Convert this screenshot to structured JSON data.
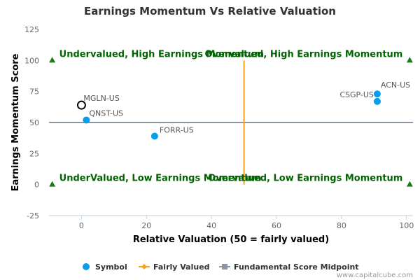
{
  "chart_data": {
    "type": "scatter",
    "title": "Earnings Momentum Vs Relative Valuation",
    "xlabel": "Relative Valuation (50 = fairly valued)",
    "ylabel": "Earnings Momentum Score",
    "xlim": [
      -10,
      102
    ],
    "ylim": [
      -25,
      125
    ],
    "xticks": [
      0,
      20,
      40,
      60,
      80,
      100
    ],
    "yticks": [
      -25,
      0,
      25,
      50,
      75,
      100,
      125
    ],
    "grid": false,
    "legend_position": "bottom",
    "series": [
      {
        "name": "Symbol",
        "color": "#0a9de7",
        "points": [
          {
            "label": "ACN-US",
            "x": 91,
            "y": 73
          },
          {
            "label": "CSGP-US",
            "x": 91,
            "y": 67
          },
          {
            "label": "FORR-US",
            "x": 22.5,
            "y": 39
          },
          {
            "label": "QNST-US",
            "x": 1.5,
            "y": 52
          },
          {
            "label": "MGLN-US",
            "x": 0,
            "y": 64,
            "highlight": true
          }
        ]
      },
      {
        "name": "Fairly Valued",
        "color": "#f7a21b",
        "line": {
          "x": [
            50,
            50
          ],
          "y": [
            0,
            100
          ]
        }
      },
      {
        "name": "Fundamental Score Midpoint",
        "color": "#8c96a0",
        "line": {
          "x": [
            -10,
            102
          ],
          "y": [
            50,
            50
          ]
        }
      }
    ],
    "quadrant_labels": {
      "top_left": "Undervalued, High Earnings Momentum",
      "top_right": "Overvalued, High Earnings Momentum",
      "bottom_left": "UnderValued, Low Earnings Momentum",
      "bottom_right": "Overvalued, Low Earnings Momentum"
    },
    "markers": [
      {
        "x": -9,
        "y": 100
      },
      {
        "x": 101,
        "y": 100
      },
      {
        "x": -9,
        "y": 0
      },
      {
        "x": 101,
        "y": 0
      }
    ],
    "marker_color": "#1a7a1a"
  },
  "credit": "www.capitalcube.com"
}
